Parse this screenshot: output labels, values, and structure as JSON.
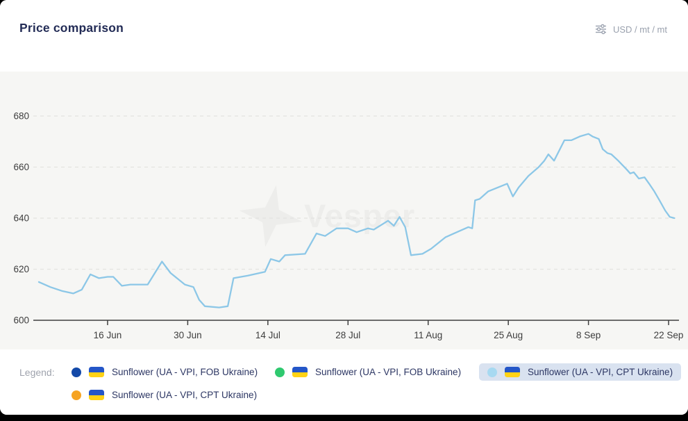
{
  "header": {
    "title": "Price comparison",
    "unit_label": "USD / mt / mt",
    "unit_icon": "sliders-icon"
  },
  "watermark": {
    "text": "Vesper",
    "logo": "vesper-star-logo"
  },
  "legend": {
    "label": "Legend:",
    "items": [
      {
        "dot_color": "#1349a8",
        "flag": "ukraine",
        "label": "Sunflower (UA - VPI, FOB Ukraine)",
        "selected": false
      },
      {
        "dot_color": "#2fc96f",
        "flag": "ukraine",
        "label": "Sunflower (UA - VPI, FOB Ukraine)",
        "selected": false
      },
      {
        "dot_color": "#a7d9f1",
        "flag": "ukraine",
        "label": "Sunflower (UA - VPI, CPT Ukraine)",
        "selected": true
      },
      {
        "dot_color": "#f6a321",
        "flag": "ukraine",
        "label": "Sunflower (UA - VPI, CPT Ukraine)",
        "selected": false
      }
    ],
    "selected_bg": "#d9e2f0"
  },
  "chart_data": {
    "type": "line",
    "title": "Price comparison",
    "unit": "USD / mt",
    "ylim": [
      600,
      688
    ],
    "y_ticks": [
      600,
      620,
      640,
      660,
      680
    ],
    "x_ticks": [
      {
        "day": 12,
        "label": "16 Jun"
      },
      {
        "day": 26,
        "label": "30 Jun"
      },
      {
        "day": 40,
        "label": "14 Jul"
      },
      {
        "day": 54,
        "label": "28 Jul"
      },
      {
        "day": 68,
        "label": "11 Aug"
      },
      {
        "day": 82,
        "label": "25 Aug"
      },
      {
        "day": 96,
        "label": "8 Sep"
      },
      {
        "day": 110,
        "label": "22 Sep"
      }
    ],
    "grid": "dashed-horizontal",
    "legend_position": "bottom",
    "series": [
      {
        "name": "Sunflower (UA - VPI, CPT Ukraine)",
        "color": "#8cc7e7",
        "x_days": [
          0,
          2,
          4,
          6,
          7.5,
          9,
          10.5,
          12,
          13,
          14.5,
          16,
          19,
          21.5,
          23,
          25.5,
          27,
          28,
          29,
          31.5,
          33,
          34,
          36.5,
          39.5,
          40.5,
          42,
          43,
          46.5,
          48.5,
          50,
          52,
          54,
          55.5,
          57.5,
          58.5,
          61,
          62,
          63,
          64,
          65,
          67,
          68.5,
          71,
          72.5,
          75,
          75.7,
          76.2,
          77,
          78.5,
          81.8,
          82.8,
          83.8,
          85.5,
          87.3,
          88.3,
          89,
          90,
          91.8,
          93,
          94.5,
          96,
          96.7,
          97.8,
          98.5,
          99.3,
          100,
          101.2,
          102.7,
          103.3,
          103.9,
          104.8,
          105.8,
          106.6,
          107.5,
          108.4,
          109.4,
          110.2,
          111
        ],
        "values": [
          615,
          613,
          611.5,
          610.5,
          612,
          618,
          616.5,
          617,
          617,
          613.5,
          614,
          614,
          623,
          618.5,
          614,
          613,
          608,
          605.5,
          605,
          605.5,
          616.5,
          617.5,
          619,
          624,
          623,
          625.5,
          626,
          634,
          633,
          636,
          636,
          634.5,
          636,
          635.5,
          639,
          637,
          640.5,
          636.5,
          625.5,
          626,
          628,
          632.5,
          634,
          636.5,
          636,
          647,
          647.5,
          650.5,
          653.5,
          648.5,
          652,
          656.5,
          660,
          662.5,
          665,
          662.5,
          670.5,
          670.5,
          672,
          673,
          672,
          671,
          667,
          665.5,
          665,
          662.5,
          659,
          657.5,
          658,
          655.5,
          656,
          653.5,
          650.5,
          647,
          643,
          640.5,
          640
        ]
      }
    ]
  },
  "colors": {
    "accent_line": "#8cc7e7",
    "title_text": "#232c56",
    "legend_text": "#2c3663",
    "muted_text": "#9aa1ae",
    "axis_text": "#3d3d3d",
    "chart_bg": "#f6f6f4",
    "gridline": "#e2e2df",
    "axis_line": "#3f3f3f",
    "watermark": "#ededeb",
    "flag_blue": "#2456c8",
    "flag_yellow": "#ffd216"
  }
}
